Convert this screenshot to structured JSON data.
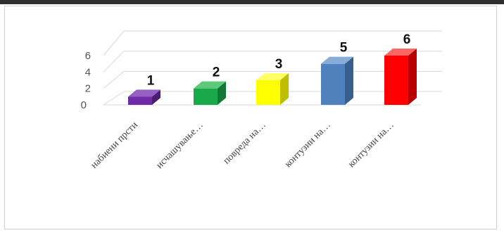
{
  "chart_data": {
    "type": "bar",
    "title": "",
    "xlabel": "",
    "ylabel": "",
    "categories": [
      "набиени прсти",
      "исчашување…",
      "повреда на…",
      "контузии на…",
      "контузии на…"
    ],
    "values": [
      1,
      2,
      3,
      5,
      6
    ],
    "data_labels": [
      "1",
      "2",
      "3",
      "5",
      "6"
    ],
    "y_ticks": [
      "0",
      "2",
      "4",
      "6"
    ],
    "ylim": [
      0,
      6
    ],
    "grid": true,
    "legend": "none",
    "bar_style": "3d-column",
    "colors": [
      "#6f2aa8",
      "#19a94a",
      "#ffff00",
      "#4f81bd",
      "#ff0000"
    ],
    "side_colors": [
      "#4d1d75",
      "#117836",
      "#bfbf00",
      "#365f8f",
      "#b80000"
    ],
    "top_colors": [
      "#9460c4",
      "#5cc97d",
      "#ffff66",
      "#89abd7",
      "#ff6666"
    ]
  }
}
